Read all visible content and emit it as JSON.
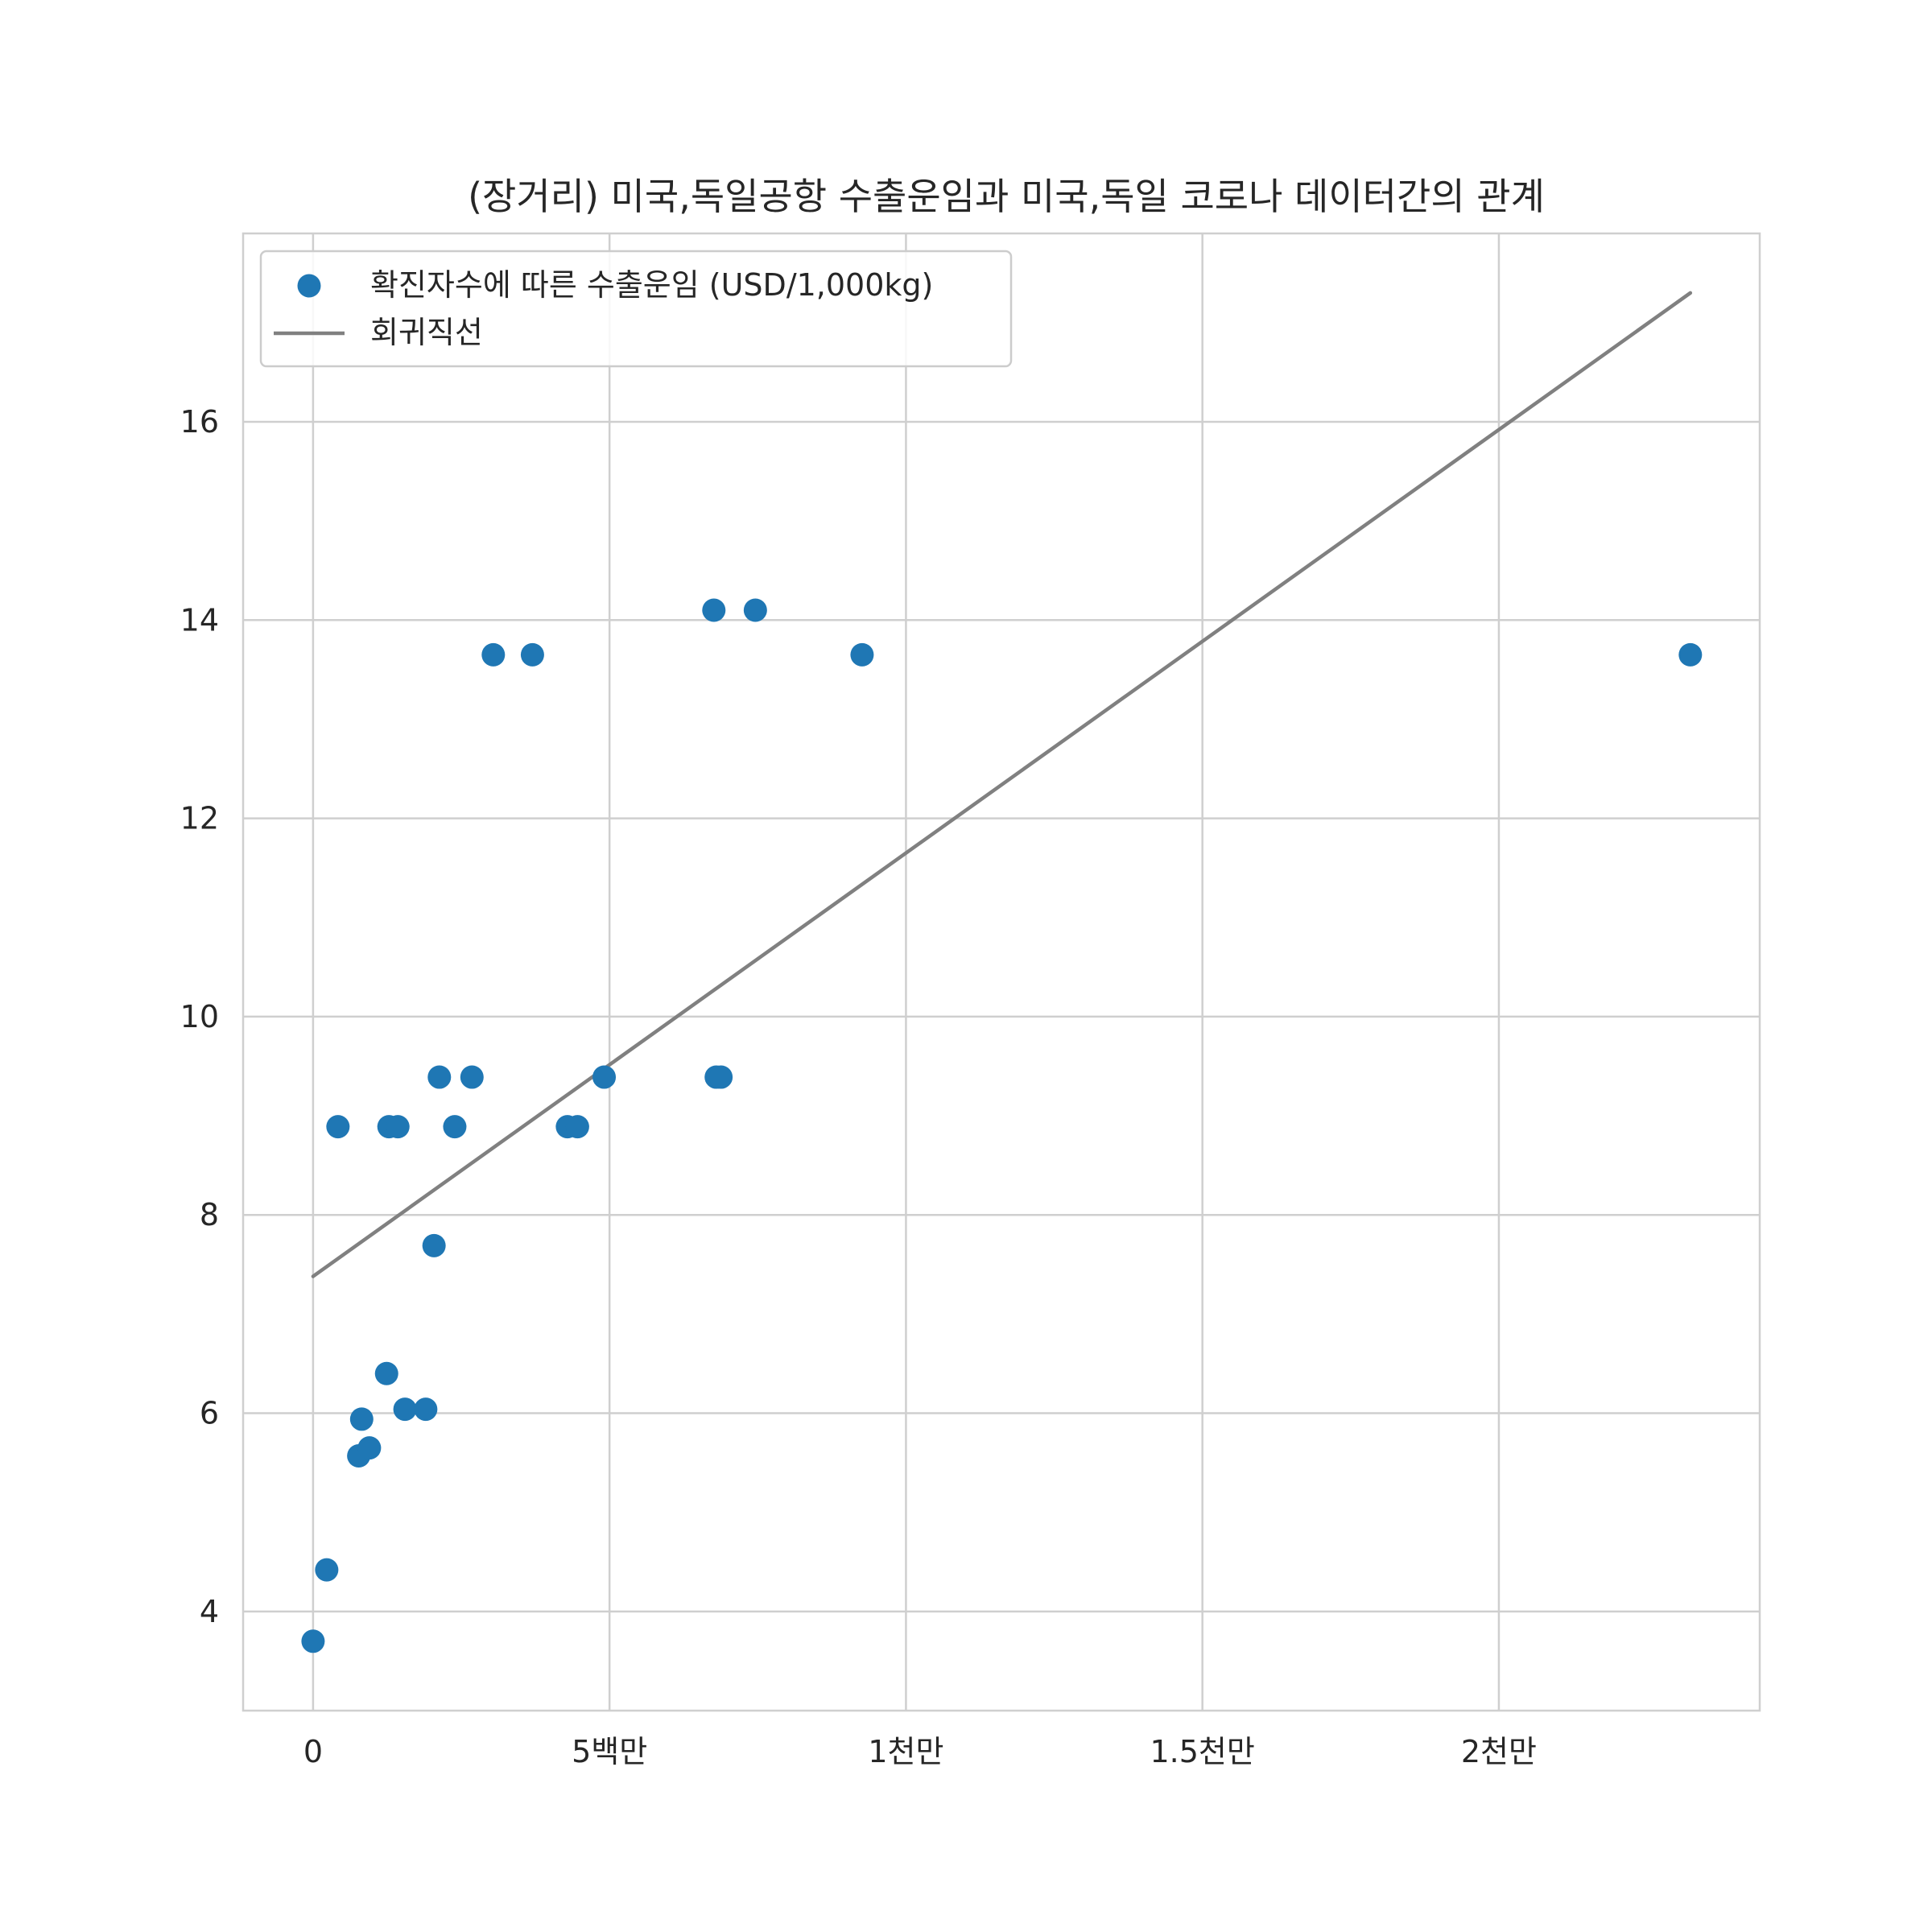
{
  "chart_data": {
    "type": "scatter",
    "title": "(장거리) 미국,독일공항 수출운임과 미국,독일 코로나 데이터간의 관계",
    "xlabel": "",
    "ylabel": "",
    "xlim": [
      -1180000,
      24400000
    ],
    "ylim": [
      3.0,
      17.9
    ],
    "x_ticks": [
      {
        "value": 0,
        "label": "0"
      },
      {
        "value": 5000000,
        "label": "5백만"
      },
      {
        "value": 10000000,
        "label": "1천만"
      },
      {
        "value": 15000000,
        "label": "1.5천만"
      },
      {
        "value": 20000000,
        "label": "2천만"
      }
    ],
    "y_ticks": [
      {
        "value": 4,
        "label": "4"
      },
      {
        "value": 6,
        "label": "6"
      },
      {
        "value": 8,
        "label": "8"
      },
      {
        "value": 10,
        "label": "10"
      },
      {
        "value": 12,
        "label": "12"
      },
      {
        "value": 14,
        "label": "14"
      },
      {
        "value": 16,
        "label": "16"
      }
    ],
    "grid": true,
    "legend_position": "top-left",
    "series": [
      {
        "name": "확진자수에 따른 수출운임 (USD/1,000kg)",
        "type": "scatter",
        "color": "#1f77b4",
        "points": [
          {
            "x": 0,
            "y": 3.7
          },
          {
            "x": 230000,
            "y": 4.42
          },
          {
            "x": 770000,
            "y": 5.57
          },
          {
            "x": 820000,
            "y": 5.94
          },
          {
            "x": 950000,
            "y": 5.65
          },
          {
            "x": 420000,
            "y": 8.89
          },
          {
            "x": 1240000,
            "y": 6.4
          },
          {
            "x": 1550000,
            "y": 6.04
          },
          {
            "x": 1900000,
            "y": 6.04
          },
          {
            "x": 2040000,
            "y": 7.69
          },
          {
            "x": 1280000,
            "y": 8.89
          },
          {
            "x": 1430000,
            "y": 8.89
          },
          {
            "x": 2130000,
            "y": 9.39
          },
          {
            "x": 2390000,
            "y": 8.89
          },
          {
            "x": 2680000,
            "y": 9.39
          },
          {
            "x": 3040000,
            "y": 13.65
          },
          {
            "x": 3700000,
            "y": 13.65
          },
          {
            "x": 4290000,
            "y": 8.89
          },
          {
            "x": 4460000,
            "y": 8.89
          },
          {
            "x": 4910000,
            "y": 9.39
          },
          {
            "x": 6760000,
            "y": 14.1
          },
          {
            "x": 6800000,
            "y": 9.39
          },
          {
            "x": 6880000,
            "y": 9.39
          },
          {
            "x": 7460000,
            "y": 14.1
          },
          {
            "x": 9260000,
            "y": 13.65
          },
          {
            "x": 23230000,
            "y": 13.65
          }
        ]
      },
      {
        "name": "회귀직선",
        "type": "line",
        "color": "#808080",
        "points": [
          {
            "x": 0,
            "y": 7.38
          },
          {
            "x": 23230000,
            "y": 17.3
          }
        ]
      }
    ]
  }
}
